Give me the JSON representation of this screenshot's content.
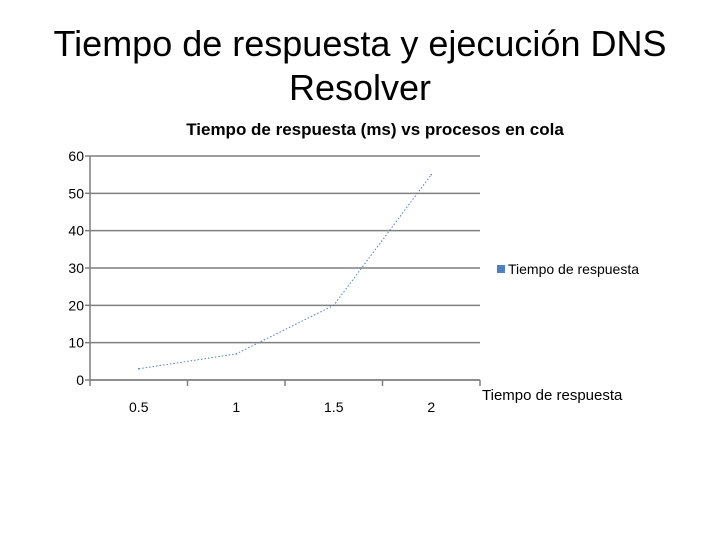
{
  "slide": {
    "title_line1": "Tiempo de respuesta y ejecución DNS",
    "title_line2": "Resolver"
  },
  "chart_data": {
    "type": "line",
    "title": "Tiempo de respuesta (ms) vs procesos en cola",
    "xlabel": "Tiempo de respuesta",
    "ylabel": "",
    "categories": [
      "0.5",
      "1",
      "1.5",
      "2"
    ],
    "series": [
      {
        "name": "Tiempo de respuesta",
        "values": [
          3,
          7,
          20,
          55
        ],
        "color": "#4F81BD"
      }
    ],
    "ylim": [
      0,
      60
    ],
    "yticks": [
      0,
      10,
      20,
      30,
      40,
      50,
      60
    ],
    "grid": true,
    "legend_position": "right"
  }
}
